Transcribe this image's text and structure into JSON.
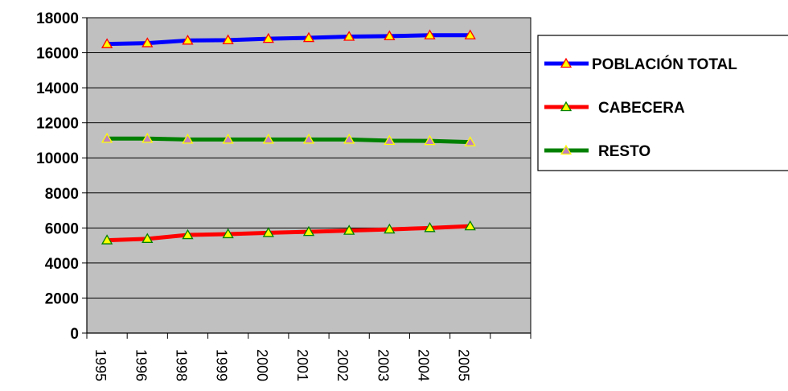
{
  "chart_data": {
    "type": "line",
    "categories": [
      "1995",
      "1996",
      "1998",
      "1999",
      "2000",
      "2001",
      "2002",
      "2003",
      "2004",
      "2005"
    ],
    "ylim": [
      0,
      18000
    ],
    "yticks": [
      0,
      2000,
      4000,
      6000,
      8000,
      10000,
      12000,
      14000,
      16000,
      18000
    ],
    "grid": true,
    "legend_position": "right",
    "plot_background": "#c0c0c0",
    "series": [
      {
        "name": "POBLACIÓN TOTAL",
        "color": "#0000ff",
        "marker_fill": "#ffff00",
        "marker_stroke": "#ff0000",
        "values": [
          16500,
          16550,
          16700,
          16720,
          16800,
          16850,
          16920,
          16950,
          17000,
          17000
        ]
      },
      {
        "name": "CABECERA",
        "color": "#ff0000",
        "marker_fill": "#ffff00",
        "marker_stroke": "#008000",
        "values": [
          5300,
          5380,
          5600,
          5650,
          5720,
          5780,
          5850,
          5920,
          6000,
          6100
        ]
      },
      {
        "name": "RESTO",
        "color": "#008000",
        "marker_fill": "#c080c0",
        "marker_stroke": "#ffff00",
        "values": [
          11100,
          11100,
          11050,
          11050,
          11050,
          11050,
          11050,
          10980,
          10970,
          10900
        ]
      }
    ]
  }
}
